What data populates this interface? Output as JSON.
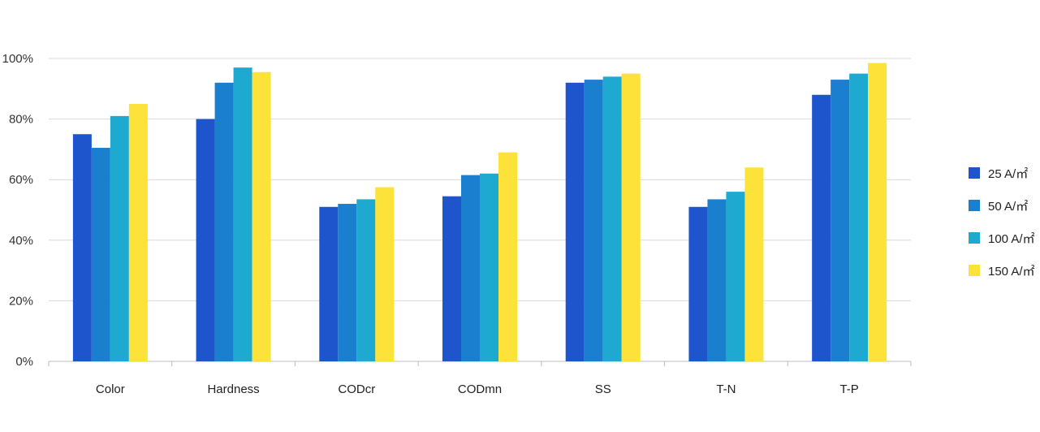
{
  "chart_data": {
    "type": "bar",
    "categories": [
      "Color",
      "Hardness",
      "CODcr",
      "CODmn",
      "SS",
      "T-N",
      "T-P"
    ],
    "series": [
      {
        "name": "25 A/㎡",
        "color": "#1f55cc",
        "values": [
          75,
          80,
          51,
          54.5,
          92,
          51,
          88
        ]
      },
      {
        "name": "50 A/㎡",
        "color": "#1b7fd0",
        "values": [
          70.5,
          92,
          52,
          61.5,
          93,
          53.5,
          93
        ]
      },
      {
        "name": "100 A/㎡",
        "color": "#1eaad0",
        "values": [
          81,
          97,
          53.5,
          62,
          94,
          56,
          95
        ]
      },
      {
        "name": "150 A/㎡",
        "color": "#fde23a",
        "values": [
          85,
          95.5,
          57.5,
          69,
          95,
          64,
          98.5
        ]
      }
    ],
    "yticks": [
      "0%",
      "20%",
      "40%",
      "60%",
      "80%",
      "100%"
    ],
    "ylim": [
      0,
      100
    ],
    "grid": true,
    "legend_position": "right"
  }
}
